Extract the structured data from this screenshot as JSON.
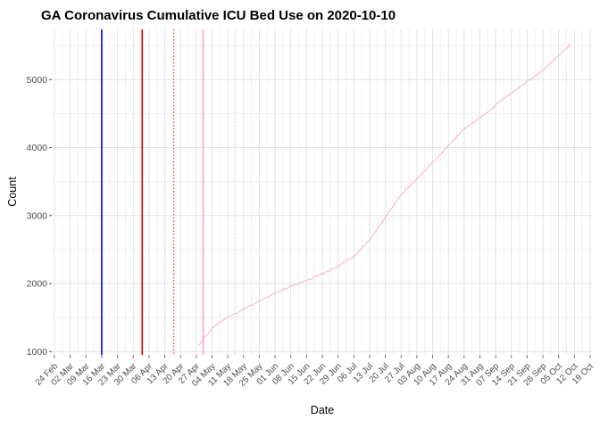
{
  "header": {
    "title": "GA Coronavirus Cumulative ICU Bed Use on 2020-10-10"
  },
  "axes": {
    "x_title": "Date",
    "y_title": "Count"
  },
  "colors": {
    "background": "#ffffff",
    "grid_major": "#e2e2e2",
    "grid_minor": "#efefef",
    "tick_mark": "#555555",
    "tick_label": "#4d4d4d",
    "series_line": "#f8b8c4",
    "vline_blue": "#0000ee",
    "vline_red": "#ee0000",
    "vline_pink": "#ffaec0",
    "vline_pink_light": "#ffc3cd"
  },
  "chart_data": {
    "type": "line",
    "title": "GA Coronavirus Cumulative ICU Bed Use on 2020-10-10",
    "xlabel": "Date",
    "ylabel": "Count",
    "grid": true,
    "legend": false,
    "x_tick_labels": [
      "24 Feb",
      "02 Mar",
      "09 Mar",
      "16 Mar",
      "23 Mar",
      "30 Mar",
      "06 Apr",
      "13 Apr",
      "20 Apr",
      "27 Apr",
      "04 May",
      "11 May",
      "18 May",
      "25 May",
      "01 Jun",
      "08 Jun",
      "15 Jun",
      "22 Jun",
      "29 Jun",
      "06 Jul",
      "13 Jul",
      "20 Jul",
      "27 Jul",
      "03 Aug",
      "10 Aug",
      "17 Aug",
      "24 Aug",
      "31 Aug",
      "07 Sep",
      "14 Sep",
      "21 Sep",
      "28 Sep",
      "05 Oct",
      "12 Oct",
      "19 Oct"
    ],
    "x_tick_dates": [
      "2020-02-24",
      "2020-03-02",
      "2020-03-09",
      "2020-03-16",
      "2020-03-23",
      "2020-03-30",
      "2020-04-06",
      "2020-04-13",
      "2020-04-20",
      "2020-04-27",
      "2020-05-04",
      "2020-05-11",
      "2020-05-18",
      "2020-05-25",
      "2020-06-01",
      "2020-06-08",
      "2020-06-15",
      "2020-06-22",
      "2020-06-29",
      "2020-07-06",
      "2020-07-13",
      "2020-07-20",
      "2020-07-27",
      "2020-08-03",
      "2020-08-10",
      "2020-08-17",
      "2020-08-24",
      "2020-08-31",
      "2020-09-07",
      "2020-09-14",
      "2020-09-21",
      "2020-09-28",
      "2020-10-05",
      "2020-10-12",
      "2020-10-19"
    ],
    "y_tick_labels": [
      "1000",
      "2000",
      "3000",
      "4000",
      "5000"
    ],
    "y_tick_values": [
      1000,
      2000,
      3000,
      4000,
      5000
    ],
    "y_minor_values": [
      1500,
      2500,
      3500,
      4500,
      5500
    ],
    "ylim": [
      950,
      5730
    ],
    "series": [
      {
        "name": "cumulative-icu-bed-use",
        "color": "#f8b8c4",
        "points": [
          [
            "2020-04-28",
            1090
          ],
          [
            "2020-05-04",
            1340
          ],
          [
            "2020-05-11",
            1500
          ],
          [
            "2020-05-18",
            1620
          ],
          [
            "2020-05-25",
            1740
          ],
          [
            "2020-06-01",
            1855
          ],
          [
            "2020-06-08",
            1960
          ],
          [
            "2020-06-15",
            2050
          ],
          [
            "2020-06-22",
            2140
          ],
          [
            "2020-06-29",
            2260
          ],
          [
            "2020-07-06",
            2400
          ],
          [
            "2020-07-13",
            2650
          ],
          [
            "2020-07-20",
            2980
          ],
          [
            "2020-07-27",
            3310
          ],
          [
            "2020-08-03",
            3540
          ],
          [
            "2020-08-10",
            3780
          ],
          [
            "2020-08-17",
            4030
          ],
          [
            "2020-08-24",
            4280
          ],
          [
            "2020-08-31",
            4450
          ],
          [
            "2020-09-07",
            4620
          ],
          [
            "2020-09-14",
            4800
          ],
          [
            "2020-09-21",
            4980
          ],
          [
            "2020-09-28",
            5140
          ],
          [
            "2020-10-05",
            5350
          ],
          [
            "2020-10-10",
            5510
          ]
        ]
      }
    ],
    "vlines": [
      {
        "date": "2020-03-16",
        "color": "#0000ee",
        "style": "solid"
      },
      {
        "date": "2020-04-03",
        "color": "#ee0000",
        "style": "solid"
      },
      {
        "date": "2020-04-17",
        "color": "#ee0000",
        "style": "dotted"
      },
      {
        "date": "2020-04-30",
        "color": "#ffaec0",
        "style": "solid"
      },
      {
        "date": "2020-05-14",
        "color": "#ffc3cd",
        "style": "dotted"
      }
    ]
  }
}
